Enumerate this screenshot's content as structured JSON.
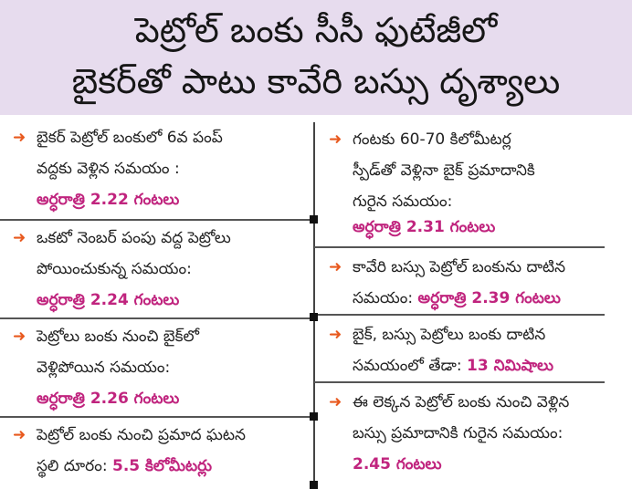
{
  "title": {
    "line1": "పెట్రోల్ బంకు సీసీ ఫుటేజీలో",
    "line2": "బైకర్‌తో పాటు కావేరి బస్సు దృశ్యాలు"
  },
  "colors": {
    "arrow": "#e8591e",
    "highlight": "#c0247e",
    "header_bg": "#e7dcee"
  },
  "left": [
    {
      "lines": [
        "బైకర్ పెట్రోల్ బంకులో 6వ పంప్",
        "వద్దకు వెళ్లిన సమయం :"
      ],
      "value": "అర్ధరాత్రి 2.22 గంటలు"
    },
    {
      "lines": [
        "ఒకటో నెంబర్ పంపు వద్ద పెట్రోలు",
        "పోయించుకున్న సమయం:"
      ],
      "value": "అర్ధరాత్రి 2.24 గంటలు"
    },
    {
      "lines": [
        "పెట్రోలు బంకు నుంచి బైక్‌లో",
        "వెళ్లిపోయిన సమయం:"
      ],
      "value": "అర్ధరాత్రి 2.26 గంటలు"
    },
    {
      "lines": [
        "పెట్రోల్ బంకు నుంచి ప్రమాద ఘటన"
      ],
      "prefix": "స్థలి దూరం: ",
      "value": "5.5 కిలోమీటర్లు"
    }
  ],
  "right": [
    {
      "lines": [
        "గంటకు 60-70 కిలోమీటర్ల",
        "స్పీడ్‌తో వెళ్లినా బైక్ ప్రమాదానికి",
        "గురైన సమయం:"
      ],
      "value": "అర్ధరాత్రి 2.31 గంటలు"
    },
    {
      "lines": [
        "కావేరి బస్సు పెట్రోల్ బంకును దాటిన"
      ],
      "prefix": "సమయం: ",
      "value": "అర్ధరాత్రి 2.39 గంటలు"
    },
    {
      "lines": [
        "బైక్, బస్సు పెట్రోలు బంకు దాటిన"
      ],
      "prefix": "సమయంలో తేడా: ",
      "value": "13 నిమిషాలు"
    },
    {
      "lines": [
        "ఈ లెక్కన పెట్రోల్ బంకు నుంచి వెళ్లిన",
        "బస్సు ప్రమాదానికి గురైన సమయం:"
      ],
      "value": "2.45 గంటలు"
    }
  ]
}
